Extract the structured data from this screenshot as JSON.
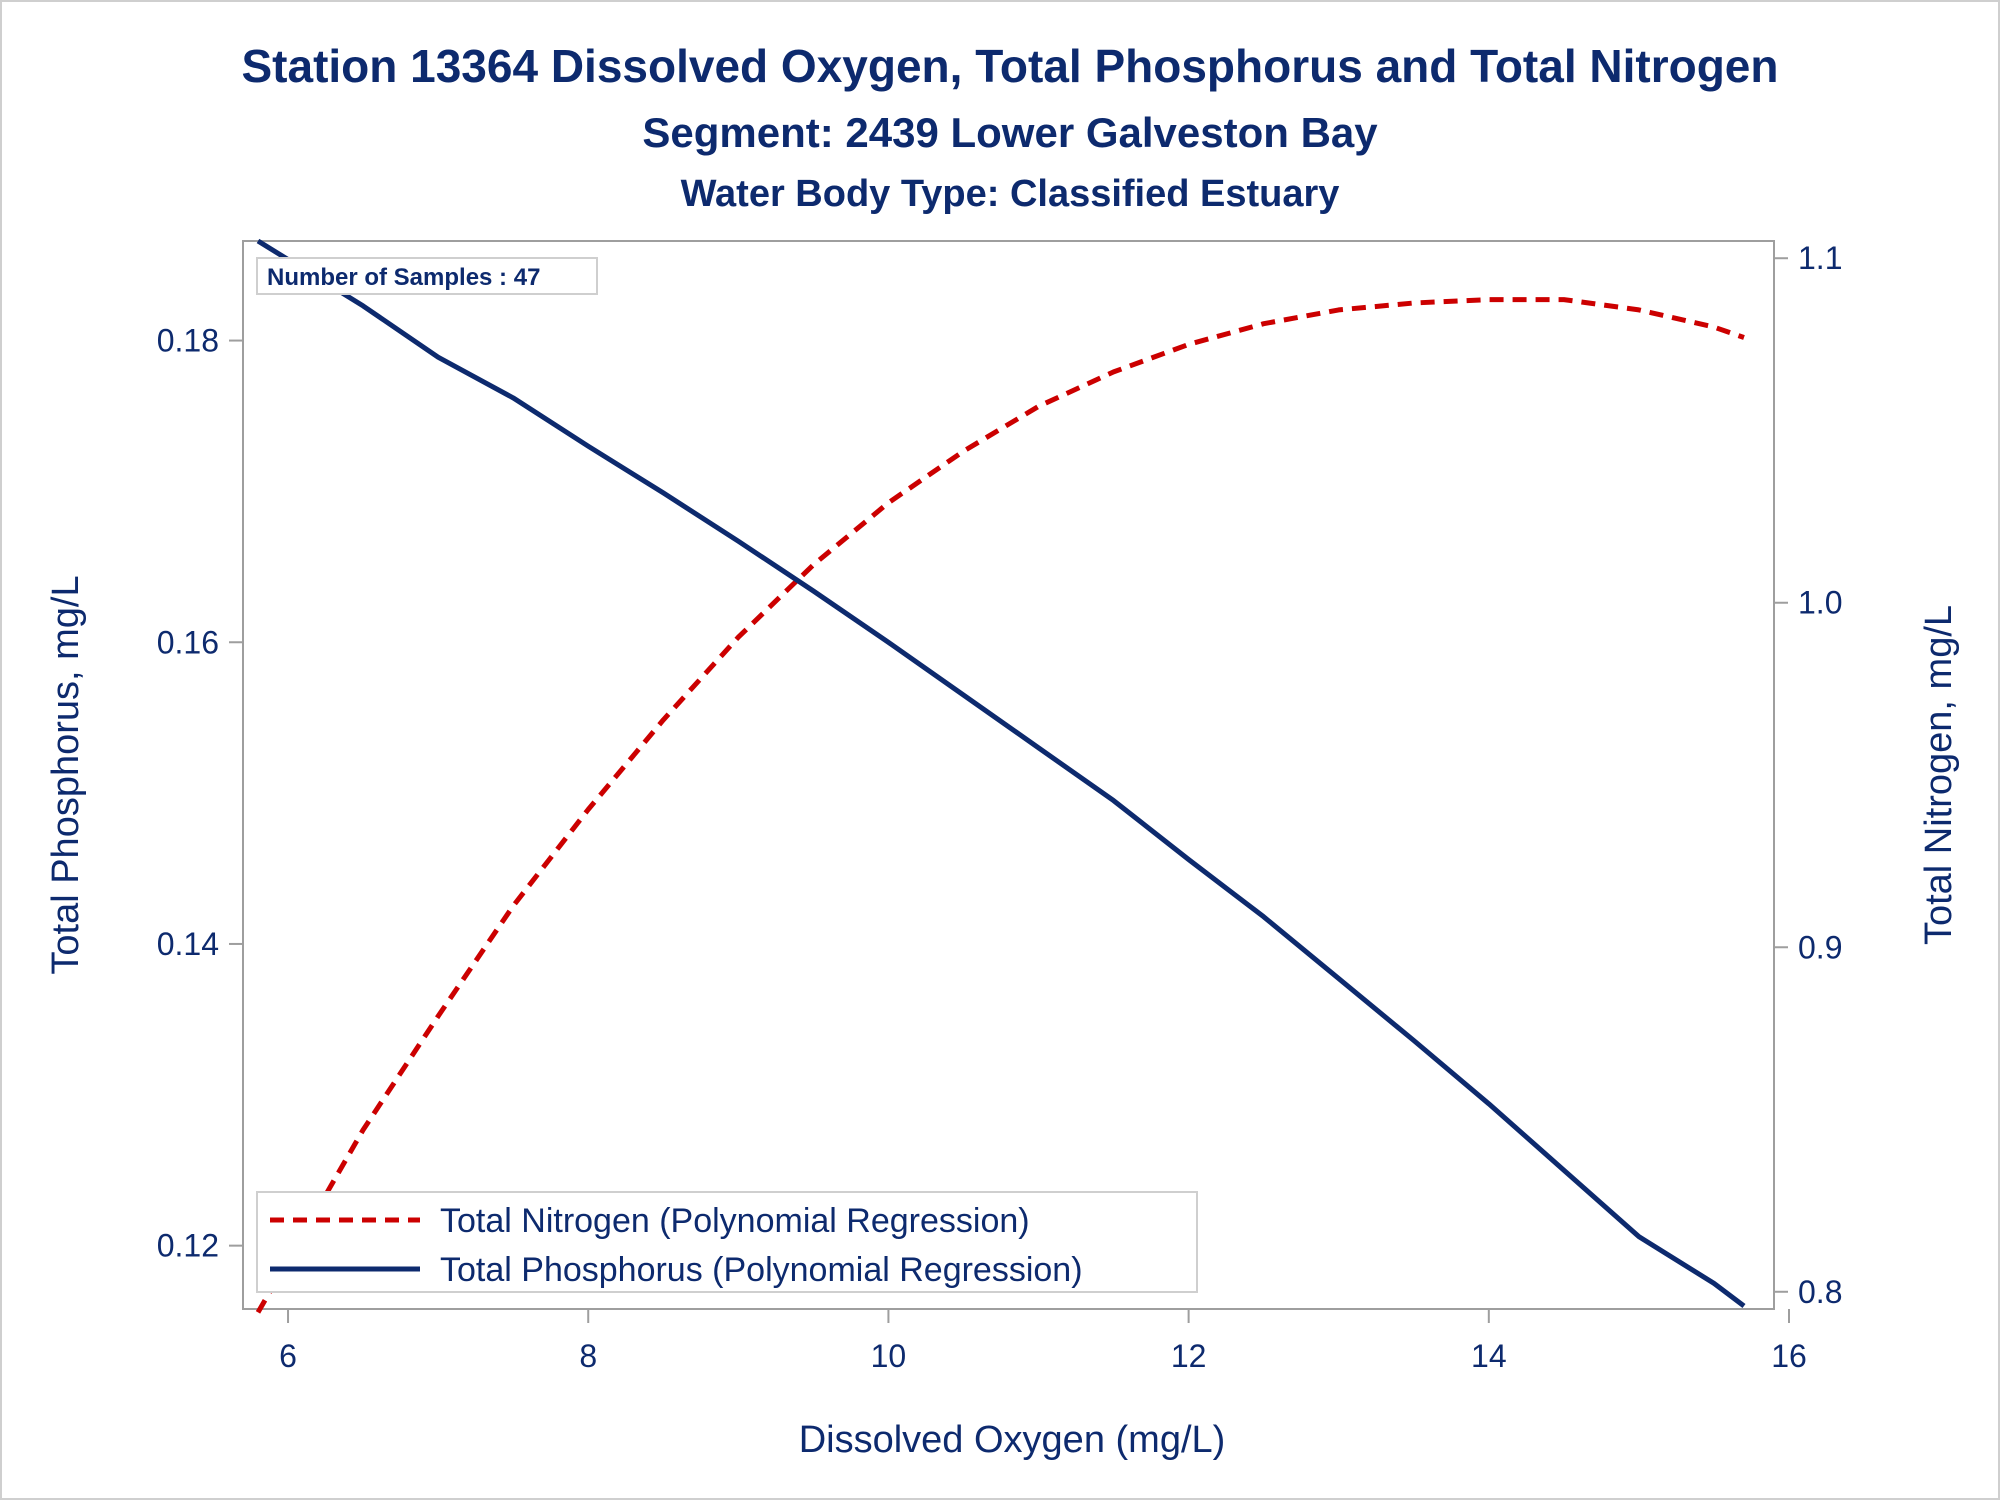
{
  "chart_data": {
    "type": "line",
    "title": "Station 13364  Dissolved Oxygen, Total Phosphorus and Total Nitrogen",
    "subtitle": "Segment: 2439  Lower Galveston Bay",
    "subtitle2": "Water Body Type: Classified Estuary",
    "xlabel": "Dissolved Oxygen (mg/L)",
    "ylabel_left": "Total Phosphorus, mg/L",
    "ylabel_right": "Total Nitrogen, mg/L",
    "xlim": [
      5.7,
      15.9
    ],
    "ylim_left": [
      0.1158,
      0.1866
    ],
    "ylim_right": [
      0.795,
      1.105
    ],
    "x_ticks": [
      6,
      8,
      10,
      12,
      14,
      16
    ],
    "y_left_ticks": [
      0.12,
      0.14,
      0.16,
      0.18
    ],
    "y_right_ticks": [
      0.8,
      0.9,
      1.0,
      1.1
    ],
    "x_tick_labels": [
      "6",
      "8",
      "10",
      "12",
      "14",
      "16"
    ],
    "y_left_tick_labels": [
      "0.12",
      "0.14",
      "0.16",
      "0.18"
    ],
    "y_right_tick_labels": [
      "0.8",
      "0.9",
      "1.0",
      "1.1"
    ],
    "annotation": "Number of Samples : 47",
    "legend_position": "bottom-left",
    "grid": false,
    "series": [
      {
        "name": "Total Nitrogen (Polynomial Regression)",
        "axis": "right",
        "color": "#cc0000",
        "style": "dashed",
        "x": [
          5.8,
          6.5,
          7.0,
          7.5,
          8.0,
          8.5,
          9.0,
          9.5,
          10.0,
          10.5,
          11.0,
          11.5,
          12.0,
          12.5,
          13.0,
          13.5,
          14.0,
          14.5,
          15.0,
          15.5,
          15.7
        ],
        "y": [
          0.794,
          0.847,
          0.88,
          0.912,
          0.94,
          0.966,
          0.99,
          1.011,
          1.029,
          1.044,
          1.057,
          1.067,
          1.075,
          1.081,
          1.085,
          1.087,
          1.088,
          1.088,
          1.085,
          1.08,
          1.077
        ]
      },
      {
        "name": "Total Phosphorus (Polynomial Regression)",
        "axis": "left",
        "color": "#0d2a6e",
        "style": "solid",
        "x": [
          5.8,
          6.5,
          7.0,
          7.5,
          8.0,
          8.5,
          9.0,
          9.5,
          10.0,
          10.5,
          11.0,
          11.5,
          12.0,
          12.5,
          13.0,
          13.5,
          14.0,
          14.5,
          15.0,
          15.5,
          15.7
        ],
        "y": [
          0.1866,
          0.1823,
          0.1789,
          0.1762,
          0.173,
          0.1699,
          0.1667,
          0.1634,
          0.16,
          0.1565,
          0.153,
          0.1495,
          0.1456,
          0.1418,
          0.1377,
          0.1336,
          0.1294,
          0.125,
          0.1206,
          0.1175,
          0.116
        ]
      }
    ]
  }
}
